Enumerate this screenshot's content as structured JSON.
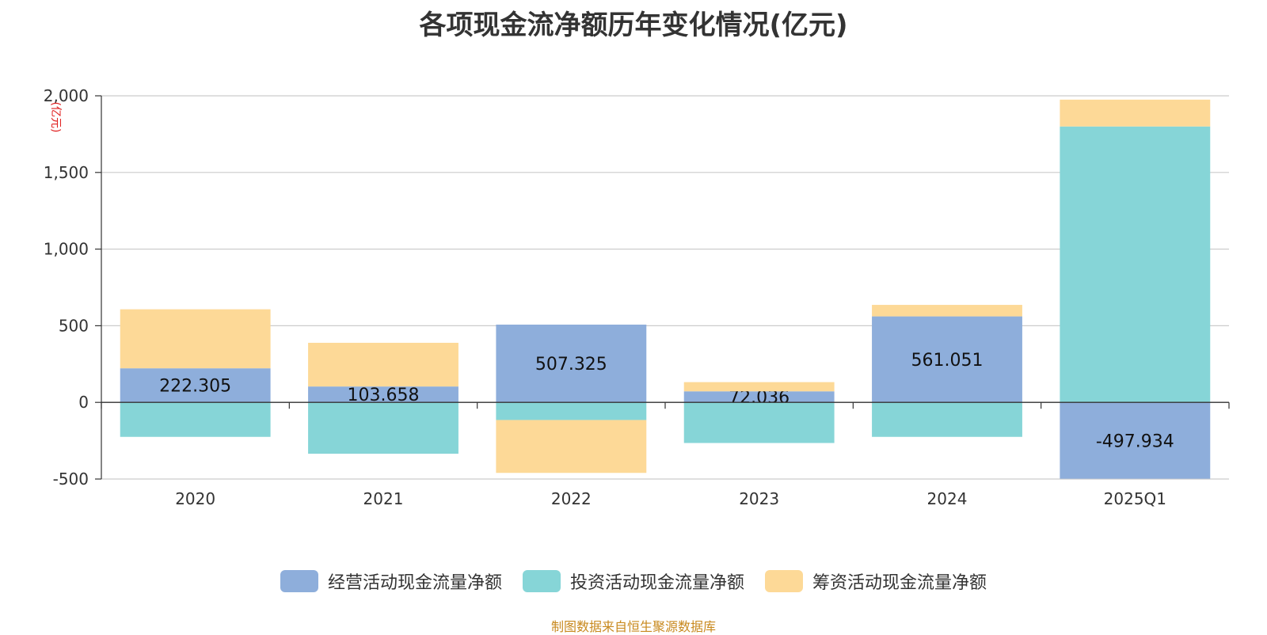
{
  "title": "各项现金流净额历年变化情况(亿元)",
  "unit_label": "(亿元)",
  "source": "制图数据来自恒生聚源数据库",
  "chart_data": {
    "type": "bar",
    "stacked": true,
    "categories": [
      "2020",
      "2021",
      "2022",
      "2023",
      "2024",
      "2025Q1"
    ],
    "ylim": [
      -500,
      2000
    ],
    "yticks": [
      -500,
      0,
      500,
      1000,
      1500,
      2000
    ],
    "ytick_labels": [
      "-500",
      "0",
      "500",
      "1,000",
      "1,500",
      "2,000"
    ],
    "grid": true,
    "legend_position": "bottom",
    "series": [
      {
        "name": "经营活动现金流量净额",
        "color": "#8eaedb",
        "values": [
          222.305,
          103.658,
          507.325,
          72.036,
          561.051,
          -497.934
        ],
        "labels": [
          "222.305",
          "103.658",
          "507.325",
          "72.036",
          "561.051",
          "-497.934"
        ]
      },
      {
        "name": "投资活动现金流量净额",
        "color": "#86d5d7",
        "values": [
          -225,
          -335,
          -115,
          -265,
          -225,
          1800
        ]
      },
      {
        "name": "筹资活动现金流量净额",
        "color": "#fdd997",
        "values": [
          385,
          285,
          -345,
          60,
          75,
          175
        ]
      }
    ]
  }
}
